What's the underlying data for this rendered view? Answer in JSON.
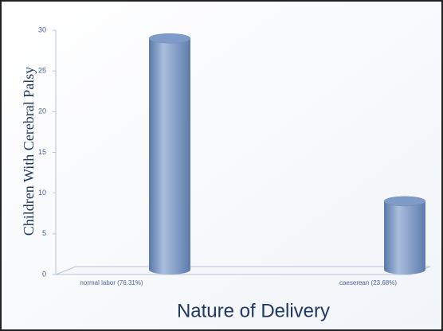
{
  "chart_data": {
    "type": "bar",
    "categories": [
      "normal labor (76.31%)",
      "caeserean (23.68%)"
    ],
    "values": [
      29,
      9
    ],
    "color": "#7f9cc8",
    "xlabel": "Nature of Delivery",
    "ylabel": "Children With Cerebral Palsy",
    "ylim": [
      0,
      30
    ],
    "yticks": [
      0,
      5,
      10,
      15,
      20,
      25,
      30
    ],
    "grid": false
  }
}
